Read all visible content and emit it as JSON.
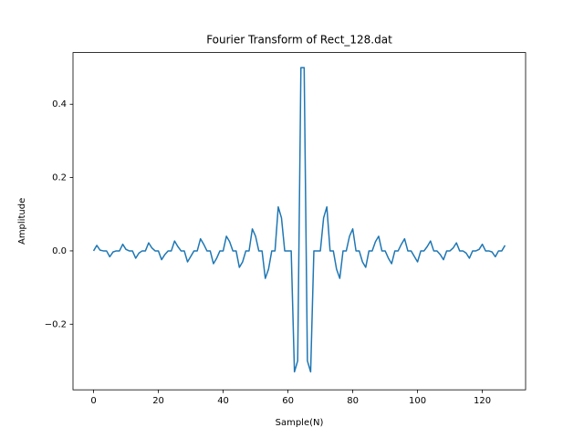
{
  "chart_data": {
    "type": "line",
    "title": "Fourier Transform of Rect_128.dat",
    "x_label": "Sample(N)",
    "y_label": "Amplitude",
    "x": [
      0,
      1,
      2,
      3,
      4,
      5,
      6,
      7,
      8,
      9,
      10,
      11,
      12,
      13,
      14,
      15,
      16,
      17,
      18,
      19,
      20,
      21,
      22,
      23,
      24,
      25,
      26,
      27,
      28,
      29,
      30,
      31,
      32,
      33,
      34,
      35,
      36,
      37,
      38,
      39,
      40,
      41,
      42,
      43,
      44,
      45,
      46,
      47,
      48,
      49,
      50,
      51,
      52,
      53,
      54,
      55,
      56,
      57,
      58,
      59,
      60,
      61,
      62,
      63,
      64,
      65,
      66,
      67,
      68,
      69,
      70,
      71,
      72,
      73,
      74,
      75,
      76,
      77,
      78,
      79,
      80,
      81,
      82,
      83,
      84,
      85,
      86,
      87,
      88,
      89,
      90,
      91,
      92,
      93,
      94,
      95,
      96,
      97,
      98,
      99,
      100,
      101,
      102,
      103,
      104,
      105,
      106,
      107,
      108,
      109,
      110,
      111,
      112,
      113,
      114,
      115,
      116,
      117,
      118,
      119,
      120,
      121,
      122,
      123,
      124,
      125,
      126,
      127
    ],
    "series": [
      {
        "color": "#1f77b4",
        "values": [
          0,
          0.015,
          0.002,
          0,
          0,
          -0.016,
          -0.003,
          0,
          0,
          0.018,
          0.004,
          0,
          0,
          -0.02,
          -0.006,
          0,
          0,
          0.022,
          0.008,
          0,
          0,
          -0.024,
          -0.01,
          0,
          0,
          0.027,
          0.012,
          0,
          0,
          -0.03,
          -0.015,
          0,
          0,
          0.033,
          0.018,
          0,
          0,
          -0.035,
          -0.02,
          0,
          0,
          0.04,
          0.025,
          0,
          0,
          -0.045,
          -0.03,
          0,
          0,
          0.06,
          0.04,
          0,
          0,
          -0.075,
          -0.05,
          0,
          0,
          0.12,
          0.09,
          0,
          0,
          0,
          -0.33,
          -0.3,
          0.5,
          0.5,
          -0.3,
          -0.33,
          0,
          0,
          0,
          0.09,
          0.12,
          0,
          0,
          -0.05,
          -0.075,
          0,
          0,
          0.04,
          0.06,
          0,
          0,
          -0.03,
          -0.045,
          0,
          0,
          0.025,
          0.04,
          0,
          0,
          -0.02,
          -0.035,
          0,
          0,
          0.018,
          0.033,
          0,
          0,
          -0.015,
          -0.03,
          0,
          0,
          0.012,
          0.027,
          0,
          0,
          -0.01,
          -0.024,
          0,
          0,
          0.008,
          0.022,
          0,
          0,
          -0.006,
          -0.02,
          0,
          0,
          0.004,
          0.018,
          0,
          0,
          -0.003,
          -0.016,
          0,
          0,
          0.015
        ]
      }
    ],
    "xlim": [
      -6.35,
      133.35
    ],
    "ylim": [
      -0.379,
      0.541
    ],
    "xticks": [
      0,
      20,
      40,
      60,
      80,
      100,
      120
    ],
    "yticks": [
      {
        "value": -0.2,
        "label": "−0.2"
      },
      {
        "value": 0,
        "label": "0.0"
      },
      0.2,
      0.4
    ]
  }
}
